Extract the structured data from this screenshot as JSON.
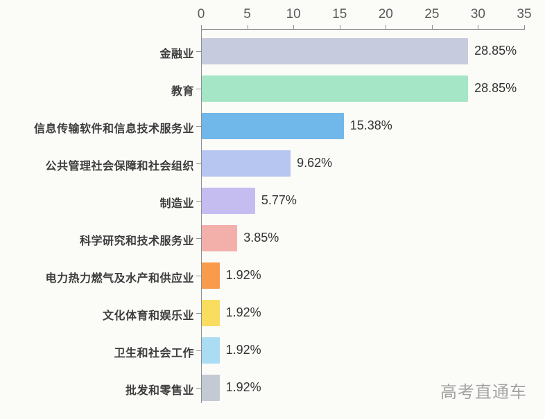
{
  "chart_data": {
    "type": "bar",
    "orientation": "horizontal",
    "title": "",
    "xlabel": "",
    "ylabel": "",
    "grid": false,
    "legend": "none",
    "x_axis": {
      "position": "top",
      "min": 0,
      "max": 35,
      "ticks": [
        0,
        5,
        10,
        15,
        20,
        25,
        30,
        35
      ]
    },
    "categories": [
      "金融业",
      "教育",
      "信息传输软件和信息技术服务业",
      "公共管理社会保障和社会组织",
      "制造业",
      "科学研究和技术服务业",
      "电力热力燃气及水产和供应业",
      "文化体育和娱乐业",
      "卫生和社会工作",
      "批发和零售业"
    ],
    "values": [
      28.85,
      28.85,
      15.38,
      9.62,
      5.77,
      3.85,
      1.92,
      1.92,
      1.92,
      1.92
    ],
    "value_labels": [
      "28.85%",
      "28.85%",
      "15.38%",
      "9.62%",
      "5.77%",
      "3.85%",
      "1.92%",
      "1.92%",
      "1.92%",
      "1.92%"
    ],
    "bar_colors": [
      "#c6ccdd",
      "#a5e6c6",
      "#70b7ea",
      "#b6c6f0",
      "#c5bdf0",
      "#f3b0ab",
      "#f89c4c",
      "#f8dd5e",
      "#aadcf3",
      "#c3cad4"
    ]
  },
  "watermark": "高考直通车",
  "colors": {
    "background": "#fbfbf8",
    "axis": "#8f8f8f",
    "tick_label": "#5a5a5a",
    "category_label": "#3d3d3d",
    "value_label": "#333333",
    "watermark": "#a3a2a0"
  }
}
